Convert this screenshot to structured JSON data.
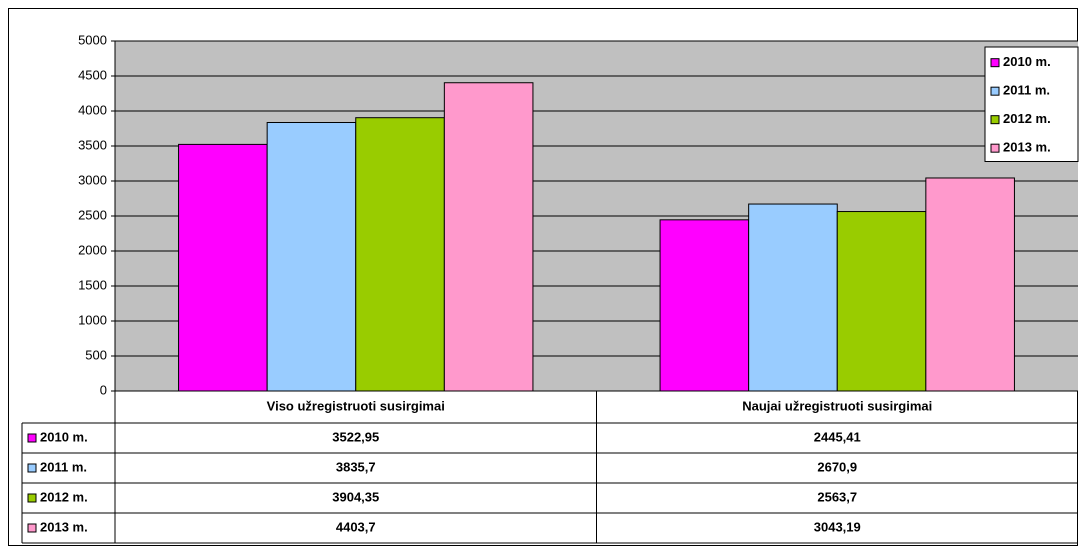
{
  "chart_data": {
    "type": "bar",
    "categories": [
      "Viso užregistruoti susirgimai",
      "Naujai užregistruoti susirgimai"
    ],
    "series": [
      {
        "name": "2010 m.",
        "color": "#ff00ff",
        "values": [
          3522.95,
          2445.41
        ],
        "value_labels": [
          "3522,95",
          "2445,41"
        ]
      },
      {
        "name": "2011 m.",
        "color": "#99ccff",
        "values": [
          3835.7,
          2670.9
        ],
        "value_labels": [
          "3835,7",
          "2670,9"
        ]
      },
      {
        "name": "2012 m.",
        "color": "#99cc00",
        "values": [
          3904.35,
          2563.7
        ],
        "value_labels": [
          "3904,35",
          "2563,7"
        ]
      },
      {
        "name": "2013 m.",
        "color": "#ff99cc",
        "values": [
          4403.7,
          3043.19
        ],
        "value_labels": [
          "4403,7",
          "3043,19"
        ]
      }
    ],
    "ylim": [
      0,
      5000
    ],
    "yticks": [
      0,
      500,
      1000,
      1500,
      2000,
      2500,
      3000,
      3500,
      4000,
      4500,
      5000
    ],
    "grid": true,
    "legend": "top-right"
  }
}
